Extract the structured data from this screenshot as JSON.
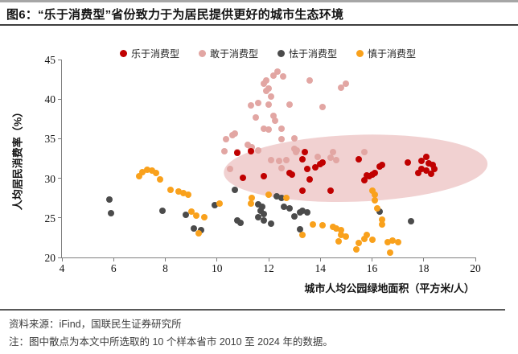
{
  "title": "图6：“乐于消费型”省份致力于为居民提供更好的城市生态环境",
  "footer": {
    "source": "资料来源：iFind，国联民生证券研究所",
    "note": "注：图中散点为本文中所选取的 10 个样本省市 2010 至 2024 年的数据。"
  },
  "chart_data": {
    "type": "scatter",
    "title": "",
    "xlabel": "城市人均公园绿地面积（平方米/人）",
    "ylabel": "人均居民消费率（%）",
    "xlim": [
      4,
      20
    ],
    "ylim": [
      20,
      45
    ],
    "xticks": [
      4,
      6,
      8,
      10,
      12,
      14,
      16,
      18,
      20
    ],
    "yticks": [
      20,
      25,
      30,
      35,
      40,
      45
    ],
    "grid": false,
    "legend_position": "top",
    "axis_color": "#7f7f7f",
    "series": [
      {
        "name": "乐于消费型",
        "color": "#c00000",
        "points": [
          [
            10.8,
            33.2
          ],
          [
            11.3,
            33.4
          ],
          [
            11.0,
            30.1
          ],
          [
            11.8,
            30.3
          ],
          [
            12.8,
            30.7
          ],
          [
            12.9,
            30.5
          ],
          [
            13.3,
            32.4
          ],
          [
            13.4,
            33.3
          ],
          [
            13.5,
            31.2
          ],
          [
            13.8,
            31.4
          ],
          [
            14.0,
            31.8
          ],
          [
            14.1,
            32.0
          ],
          [
            13.6,
            29.9
          ],
          [
            13.3,
            28.4
          ],
          [
            14.4,
            28.4
          ],
          [
            15.5,
            32.4
          ],
          [
            15.7,
            29.8
          ],
          [
            15.8,
            30.4
          ],
          [
            15.9,
            30.3
          ],
          [
            16.0,
            30.5
          ],
          [
            16.1,
            30.7
          ],
          [
            16.3,
            31.5
          ],
          [
            16.4,
            31.7
          ],
          [
            17.4,
            32.0
          ],
          [
            17.8,
            30.7
          ],
          [
            17.9,
            32.2
          ],
          [
            17.9,
            31.2
          ],
          [
            18.1,
            32.7
          ],
          [
            18.1,
            31.0
          ],
          [
            18.2,
            31.9
          ],
          [
            18.35,
            31.7
          ],
          [
            18.3,
            30.6
          ],
          [
            18.4,
            31.2
          ]
        ]
      },
      {
        "name": "敢于消费型",
        "color": "#e2a6a3",
        "points": [
          [
            12.35,
            43.5
          ],
          [
            12.2,
            43.0
          ],
          [
            12.55,
            42.9
          ],
          [
            13.6,
            42.4
          ],
          [
            11.9,
            42.4
          ],
          [
            11.8,
            42.0
          ],
          [
            15.0,
            42.0
          ],
          [
            14.8,
            41.4
          ],
          [
            12.0,
            41.3
          ],
          [
            11.9,
            41.0
          ],
          [
            12.1,
            40.3
          ],
          [
            11.6,
            39.5
          ],
          [
            12.0,
            39.3
          ],
          [
            11.3,
            39.2
          ],
          [
            12.8,
            39.3
          ],
          [
            14.1,
            39.0
          ],
          [
            11.5,
            37.7
          ],
          [
            12.2,
            37.9
          ],
          [
            12.25,
            37.3
          ],
          [
            11.8,
            36.3
          ],
          [
            12.0,
            36.2
          ],
          [
            12.5,
            36.3
          ],
          [
            10.6,
            35.4
          ],
          [
            10.7,
            35.6
          ],
          [
            10.35,
            34.9
          ],
          [
            12.5,
            34.9
          ],
          [
            13.0,
            35.0
          ],
          [
            11.2,
            34.2
          ],
          [
            11.35,
            33.9
          ],
          [
            11.3,
            33.6
          ],
          [
            11.6,
            33.5
          ],
          [
            10.3,
            33.4
          ],
          [
            10.8,
            33.3
          ],
          [
            13.0,
            33.7
          ],
          [
            13.1,
            33.5
          ],
          [
            13.05,
            33.3
          ],
          [
            14.5,
            33.3
          ],
          [
            15.7,
            33.3
          ],
          [
            12.1,
            32.3
          ],
          [
            12.4,
            32.2
          ],
          [
            12.7,
            32.3
          ],
          [
            12.5,
            31.3
          ],
          [
            13.9,
            32.7
          ],
          [
            14.4,
            32.6
          ],
          [
            14.6,
            32.3
          ],
          [
            10.5,
            31.2
          ]
        ]
      },
      {
        "name": "怯于消费型",
        "color": "#4b4b4b",
        "points": [
          [
            5.85,
            27.3
          ],
          [
            5.9,
            25.6
          ],
          [
            7.9,
            25.9
          ],
          [
            8.8,
            25.4
          ],
          [
            9.9,
            26.6
          ],
          [
            9.1,
            23.7
          ],
          [
            9.4,
            23.5
          ],
          [
            10.7,
            28.5
          ],
          [
            10.8,
            24.7
          ],
          [
            10.9,
            24.4
          ],
          [
            11.6,
            26.7
          ],
          [
            11.75,
            26.4
          ],
          [
            11.7,
            25.9
          ],
          [
            11.8,
            25.5
          ],
          [
            11.6,
            25.1
          ],
          [
            12.3,
            27.7
          ],
          [
            12.5,
            27.5
          ],
          [
            12.6,
            26.4
          ],
          [
            12.8,
            26.2
          ],
          [
            13.0,
            25.2
          ],
          [
            13.2,
            25.7
          ],
          [
            13.3,
            25.9
          ],
          [
            13.5,
            25.7
          ],
          [
            11.8,
            24.7
          ],
          [
            12.1,
            24.3
          ],
          [
            13.2,
            23.6
          ],
          [
            16.3,
            25.8
          ],
          [
            17.5,
            24.6
          ]
        ]
      },
      {
        "name": "慎于消费型",
        "color": "#f9a11c",
        "points": [
          [
            7.0,
            30.3
          ],
          [
            7.1,
            30.8
          ],
          [
            7.3,
            31.1
          ],
          [
            7.5,
            31.0
          ],
          [
            7.65,
            30.7
          ],
          [
            7.8,
            29.9
          ],
          [
            8.2,
            28.5
          ],
          [
            8.5,
            28.3
          ],
          [
            8.7,
            28.1
          ],
          [
            8.9,
            27.9
          ],
          [
            9.0,
            25.8
          ],
          [
            9.2,
            25.3
          ],
          [
            9.5,
            25.1
          ],
          [
            9.3,
            23.0
          ],
          [
            10.1,
            26.8
          ],
          [
            11.35,
            27.5
          ],
          [
            11.3,
            26.8
          ],
          [
            12.0,
            27.9
          ],
          [
            12.7,
            27.5
          ],
          [
            13.3,
            22.8
          ],
          [
            13.7,
            24.2
          ],
          [
            14.1,
            24.1
          ],
          [
            14.5,
            23.9
          ],
          [
            14.6,
            23.7
          ],
          [
            14.8,
            23.5
          ],
          [
            14.8,
            22.8
          ],
          [
            15.0,
            22.6
          ],
          [
            14.7,
            22.0
          ],
          [
            15.4,
            21.0
          ],
          [
            15.5,
            21.8
          ],
          [
            15.7,
            22.3
          ],
          [
            15.8,
            22.8
          ],
          [
            16.0,
            22.2
          ],
          [
            16.0,
            28.4
          ],
          [
            16.1,
            27.9
          ],
          [
            16.1,
            27.2
          ],
          [
            16.2,
            26.2
          ],
          [
            16.4,
            24.8
          ],
          [
            16.4,
            24.2
          ],
          [
            16.6,
            21.9
          ],
          [
            16.8,
            22.1
          ],
          [
            17.0,
            21.9
          ],
          [
            16.7,
            20.6
          ]
        ]
      }
    ],
    "annotation_ellipse": {
      "cx": 15.35,
      "cy": 31.3,
      "rx": 5.1,
      "ry": 4.2,
      "rotation_deg": -2,
      "color": "#eec6c6",
      "opacity": 0.8
    }
  }
}
